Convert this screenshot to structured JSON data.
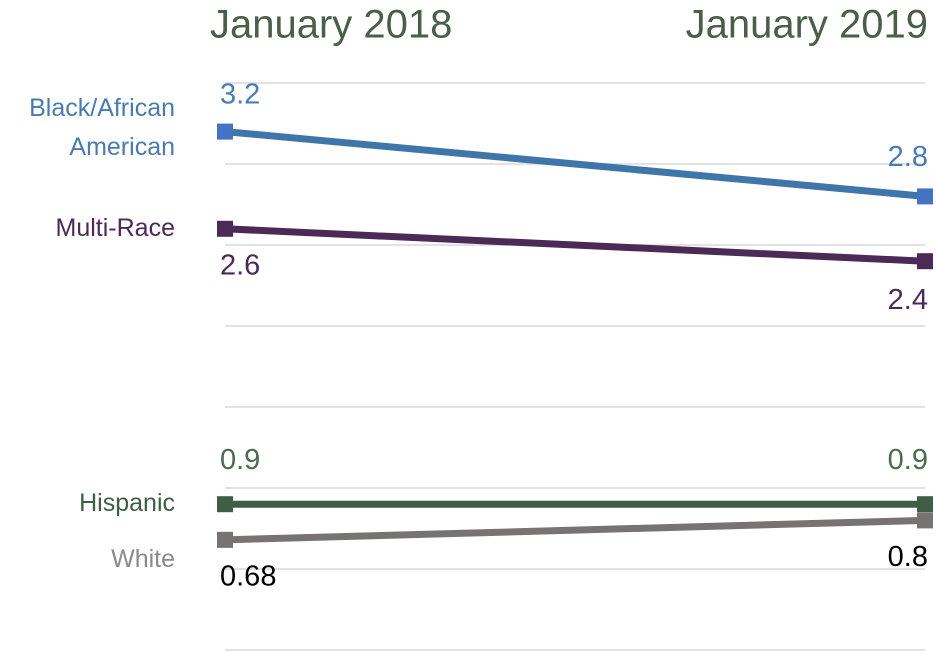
{
  "chart_data": {
    "type": "line",
    "categories": [
      "January 2018",
      "January 2019"
    ],
    "series": [
      {
        "name": "Black/African American",
        "color": "#3f76aa",
        "values": [
          3.2,
          2.8
        ]
      },
      {
        "name": "Multi-Race",
        "color": "#4b2a57",
        "values": [
          2.6,
          2.4
        ]
      },
      {
        "name": "Hispanic",
        "color": "#3f5e45",
        "values": [
          0.9,
          0.9
        ]
      },
      {
        "name": "White",
        "color": "#787373",
        "values": [
          0.68,
          0.8
        ]
      }
    ],
    "ylim": [
      0,
      3.5
    ],
    "yticks": [
      0,
      0.5,
      1,
      1.5,
      2,
      2.5,
      3,
      3.5
    ],
    "grid": true
  }
}
